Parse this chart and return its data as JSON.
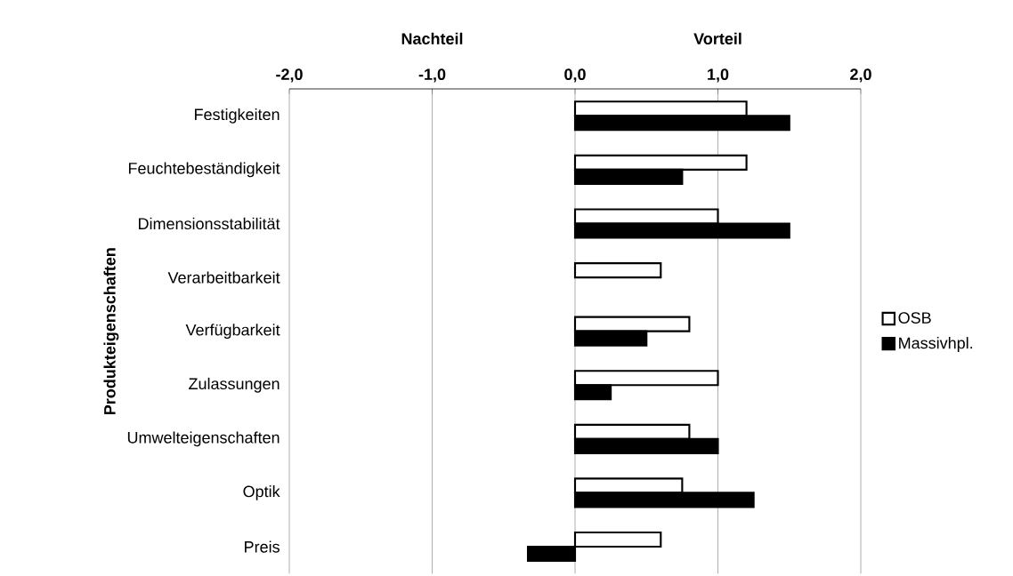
{
  "chart_data": {
    "type": "bar",
    "orientation": "horizontal",
    "ylabel": "Produkteigenschaften",
    "annotations": [
      "Nachteil",
      "Vorteil"
    ],
    "categories": [
      "Festigkeiten",
      "Feuchtebeständigkeit",
      "Dimensionsstabilität",
      "Verarbeitbarkeit",
      "Verfügbarkeit",
      "Zulassungen",
      "Umwelteigenschaften",
      "Optik",
      "Preis"
    ],
    "series": [
      {
        "name": "OSB",
        "color": "#ffffff",
        "values": [
          1.2,
          1.2,
          1.0,
          0.6,
          0.8,
          1.0,
          0.8,
          0.75,
          0.6
        ]
      },
      {
        "name": "Massivhpl.",
        "color": "#000000",
        "values": [
          1.5,
          0.75,
          1.5,
          null,
          0.5,
          0.25,
          1.0,
          1.25,
          -0.33
        ]
      }
    ],
    "xlim": [
      -2,
      2
    ],
    "xticks": [
      {
        "value": -2,
        "label": "-2,0"
      },
      {
        "value": -1,
        "label": "-1,0"
      },
      {
        "value": 0,
        "label": "0,0"
      },
      {
        "value": 1,
        "label": "1,0"
      },
      {
        "value": 2,
        "label": "2,0"
      }
    ],
    "grid": "x",
    "legend": "right"
  }
}
